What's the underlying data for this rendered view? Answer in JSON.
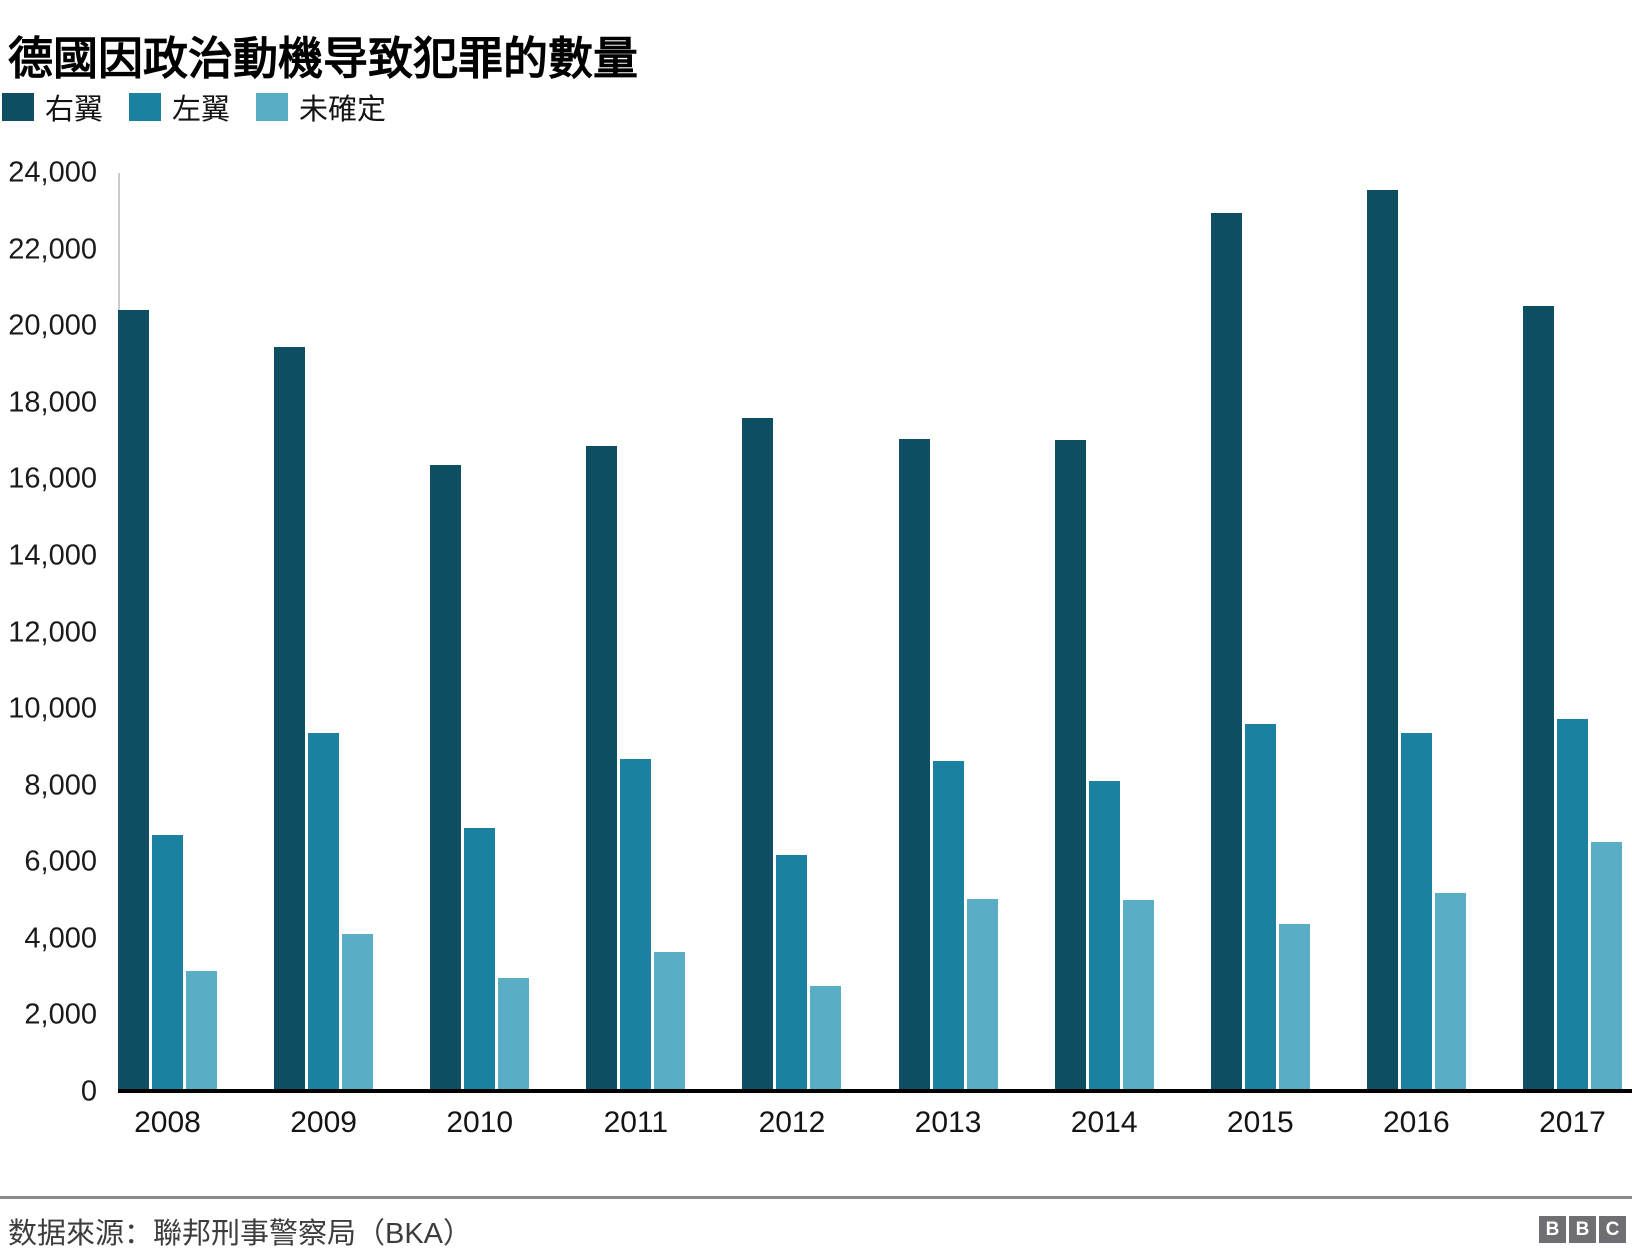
{
  "title": "德國因政治動機导致犯罪的數量",
  "chart_data": {
    "type": "bar",
    "title": "德國因政治動機导致犯罪的數量",
    "categories": [
      2008,
      2009,
      2010,
      2011,
      2012,
      2013,
      2014,
      2015,
      2016,
      2017
    ],
    "series": [
      {
        "key": "right-wing",
        "name": "右翼",
        "color": "#0d4e63",
        "values": [
          20422,
          19468,
          16375,
          16873,
          17616,
          17042,
          17020,
          22960,
          23555,
          20520
        ]
      },
      {
        "key": "left-wing",
        "name": "左翼",
        "color": "#1c80a1",
        "values": [
          6724,
          9375,
          6898,
          8687,
          6191,
          8637,
          8113,
          9605,
          9389,
          9752
        ]
      },
      {
        "key": "undetermined",
        "name": "未確定",
        "color": "#59aec6",
        "values": [
          3170,
          4117,
          2978,
          3655,
          2764,
          5048,
          5004,
          4395,
          5205,
          6528
        ]
      }
    ],
    "xlabel": "",
    "ylabel": "",
    "ylim": [
      0,
      24000
    ],
    "ytick_step": 2000,
    "grid": "none",
    "legend_position": "top-left",
    "bar_color_axis_line": "#000000"
  },
  "footer": {
    "source": "数据來源：聯邦刑事警察局（BKA）",
    "logo_letters": [
      "B",
      "B",
      "C"
    ]
  }
}
